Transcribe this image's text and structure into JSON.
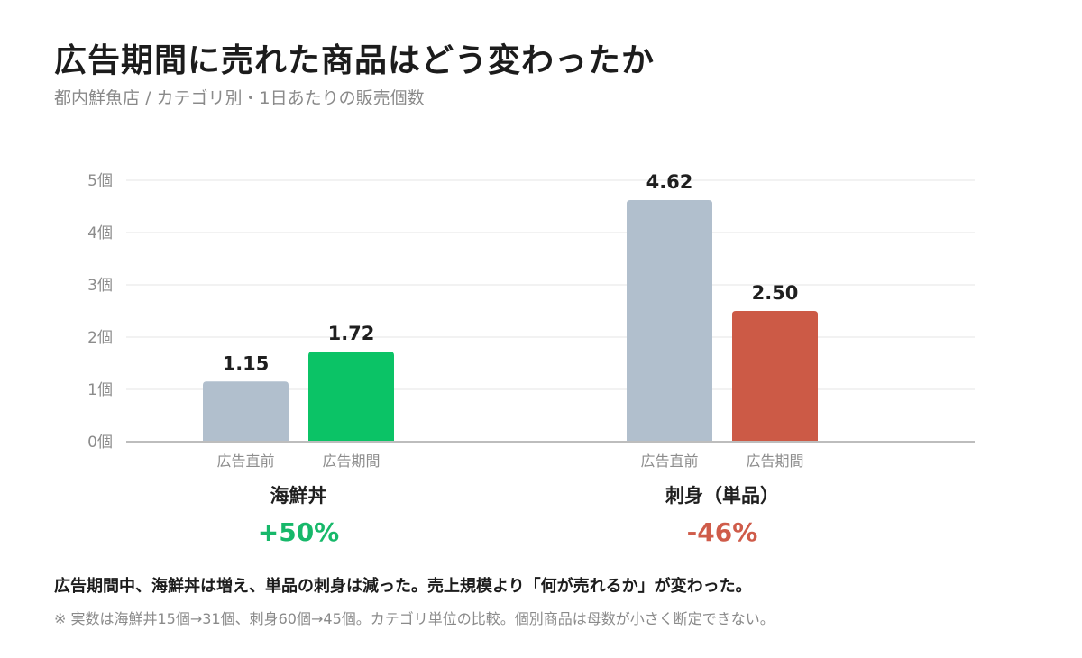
{
  "title": "広告期間に売れた商品はどう変わったか",
  "subtitle": "都内鮮魚店 / カテゴリ別・1日あたりの販売個数",
  "chart_data": {
    "type": "bar",
    "ylim": [
      0,
      5
    ],
    "y_ticks": [
      "0個",
      "1個",
      "2個",
      "3個",
      "4個",
      "5個"
    ],
    "grid": true,
    "groups": [
      {
        "name": "海鮮丼",
        "change": "+50%",
        "change_color": "#17b86a",
        "bars": [
          {
            "label": "広告直前",
            "value": 1.15,
            "value_label": "1.15",
            "color": "#b1bfcd"
          },
          {
            "label": "広告期間",
            "value": 1.72,
            "value_label": "1.72",
            "color": "#0bc366"
          }
        ]
      },
      {
        "name": "刺身（単品）",
        "change": "-46%",
        "change_color": "#cf5c4a",
        "bars": [
          {
            "label": "広告直前",
            "value": 4.62,
            "value_label": "4.62",
            "color": "#b1bfcd"
          },
          {
            "label": "広告期間",
            "value": 2.5,
            "value_label": "2.50",
            "color": "#cc5a46"
          }
        ]
      }
    ]
  },
  "note": "広告期間中、海鮮丼は増え、単品の刺身は減った。売上規模より「何が売れるか」が変わった。",
  "footnote": "※ 実数は海鮮丼15個→31個、刺身60個→45個。カテゴリ単位の比較。個別商品は母数が小さく断定できない。"
}
